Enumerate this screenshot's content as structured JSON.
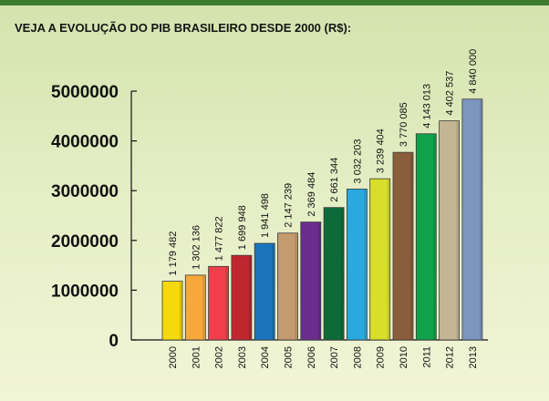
{
  "title": "VEJA A EVOLUÇÃO DO PIB BRASILEIRO DESDE 2000 (R$):",
  "chart_data": {
    "type": "bar",
    "title": "VEJA A EVOLUÇÃO DO PIB BRASILEIRO DESDE 2000 (R$):",
    "xlabel": "",
    "ylabel": "",
    "ylim": [
      0,
      5000000
    ],
    "yticks": [
      "0",
      "1000000",
      "2000000",
      "3000000",
      "4000000",
      "5000000"
    ],
    "categories": [
      "2000",
      "2001",
      "2002",
      "2003",
      "2004",
      "2005",
      "2006",
      "2007",
      "2008",
      "2009",
      "2010",
      "2011",
      "2012",
      "2013"
    ],
    "values": [
      1179482,
      1302136,
      1477822,
      1699948,
      1941498,
      2147239,
      2369484,
      2661344,
      3032203,
      3239404,
      3770085,
      4143013,
      4402537,
      4840000
    ],
    "value_labels": [
      "1 179 482",
      "1 302 136",
      "1 477 822",
      "1 699 948",
      "1 941 498",
      "2 147 239",
      "2 369 484",
      "2 661 344",
      "3 032 203",
      "3 239 404",
      "3 770 085",
      "4 143 013",
      "4 402 537",
      "4 840 000"
    ],
    "colors": [
      "#f5d90a",
      "#f6a83c",
      "#ee3f4b",
      "#c0262e",
      "#1b74bc",
      "#c49b6e",
      "#6a2c8d",
      "#0d6b3a",
      "#29a9df",
      "#d8df2a",
      "#8b5e3b",
      "#11a14a",
      "#c3b694",
      "#7b97c0"
    ],
    "grid": false,
    "legend": "none"
  }
}
